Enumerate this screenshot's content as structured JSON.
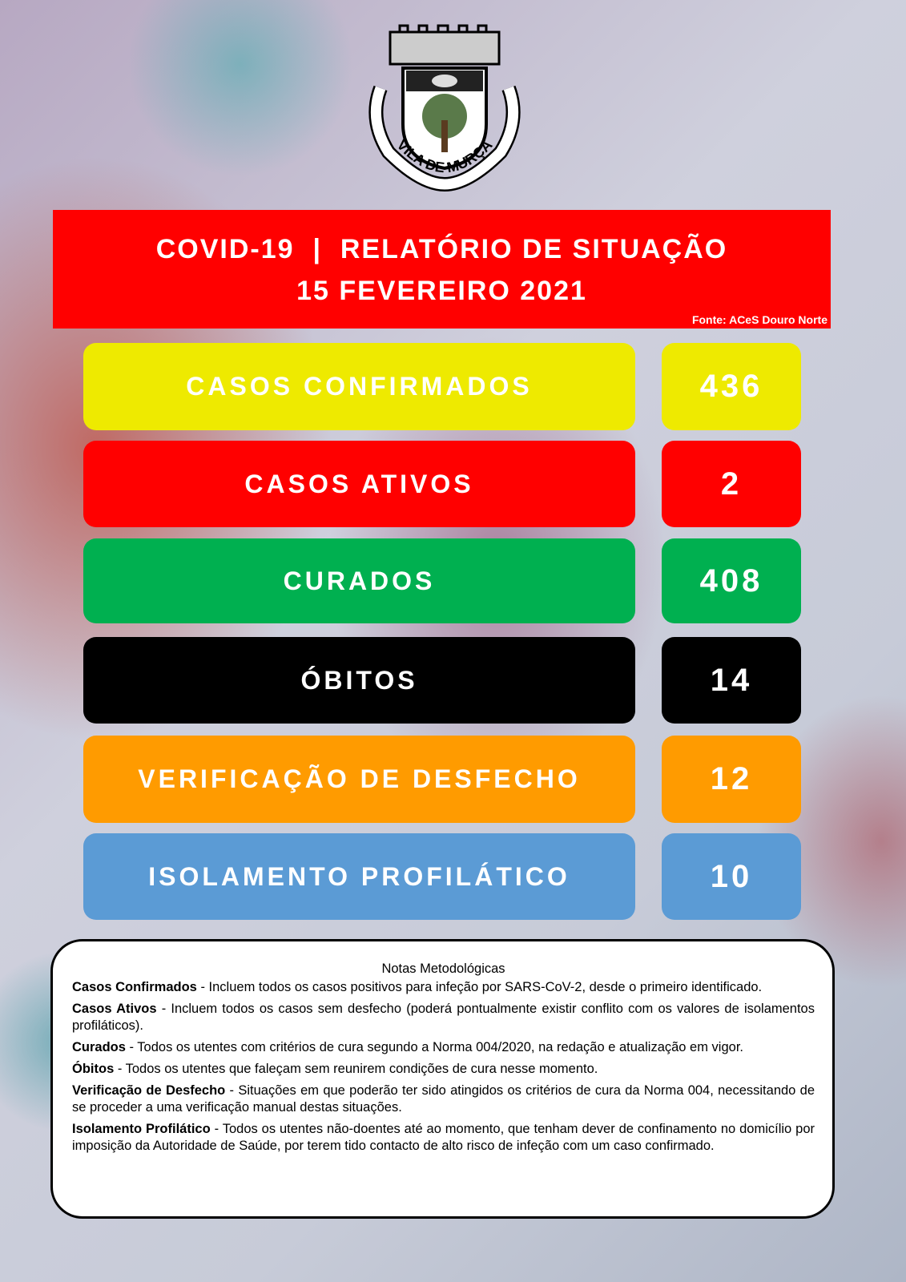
{
  "logo": {
    "text": "VILA DE MURÇA"
  },
  "header": {
    "title": "COVID-19  |  RELATÓRIO DE SITUAÇÃO",
    "date": "15 FEVEREIRO 2021",
    "source": "Fonte: ACeS Douro Norte"
  },
  "stats": [
    {
      "label": "CASOS CONFIRMADOS",
      "value": "436",
      "color": "#eeea00"
    },
    {
      "label": "CASOS ATIVOS",
      "value": "2",
      "color": "#ff0000"
    },
    {
      "label": "CURADOS",
      "value": "408",
      "color": "#00b050"
    },
    {
      "label": "ÓBITOS",
      "value": "14",
      "color": "#000000"
    },
    {
      "label": "VERIFICAÇÃO DE DESFECHO",
      "value": "12",
      "color": "#ff9b00"
    },
    {
      "label": "ISOLAMENTO PROFILÁTICO",
      "value": "10",
      "color": "#5b9bd5"
    }
  ],
  "notes": {
    "title": "Notas Metodológicas",
    "items": [
      {
        "term": "Casos Confirmados",
        "text": " - Incluem todos os casos positivos para infeção por SARS-CoV-2, desde o primeiro identificado."
      },
      {
        "term": "Casos Ativos",
        "text": " - Incluem todos os casos sem desfecho (poderá pontualmente existir conflito com os valores de isolamentos profiláticos)."
      },
      {
        "term": "Curados",
        "text": " - Todos os utentes com critérios de cura segundo a Norma 004/2020, na redação e atualização em vigor."
      },
      {
        "term": "Óbitos",
        "text": " - Todos os utentes que faleçam sem reunirem condições de cura nesse momento."
      },
      {
        "term": "Verificação de Desfecho",
        "text": " - Situações em que poderão ter sido atingidos os critérios de cura da Norma 004, necessitando de se proceder a uma verificação manual destas situações."
      },
      {
        "term": "Isolamento Profilático",
        "text": " - Todos os utentes não-doentes até ao momento, que tenham dever de confinamento no domicílio por imposição da Autoridade de Saúde, por terem tido contacto de alto risco de infeção com um caso confirmado."
      }
    ]
  }
}
